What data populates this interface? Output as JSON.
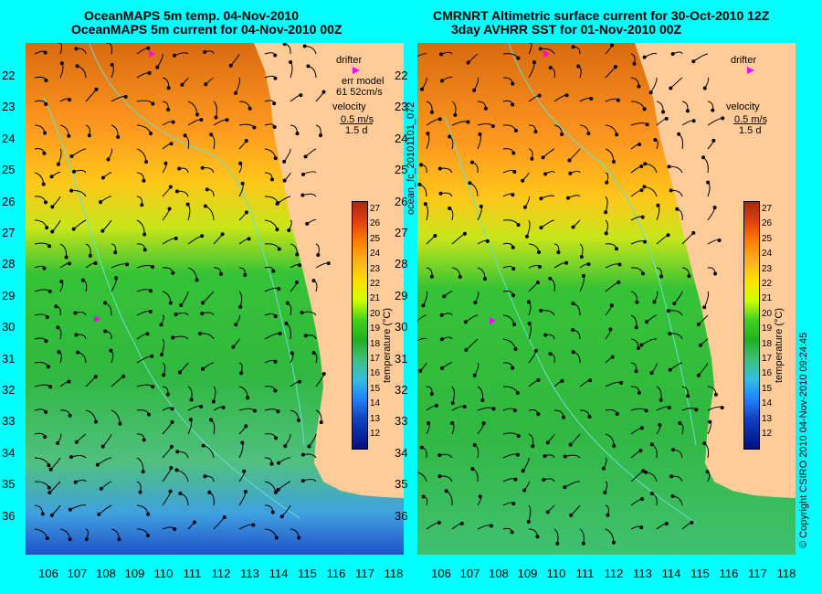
{
  "left_panel": {
    "title_line1": "OceanMAPS 5m temp. 04-Nov-2010",
    "title_line2": "OceanMAPS 5m current for 04-Nov-2010 00Z",
    "legend": {
      "drifter": "drifter",
      "err_model_1": "err model",
      "err_model_2": "61 52cm/s",
      "velocity": "velocity",
      "scale_1": "0.5 m/s",
      "scale_2": "1.5 d"
    }
  },
  "right_panel": {
    "title_line1": "CMRNRT Altimetric surface current for 30-Oct-2010 12Z",
    "title_line2": "3day AVHRR SST for 01-Nov-2010 00Z",
    "legend": {
      "drifter": "drifter",
      "velocity": "velocity",
      "scale_1": "0.5 m/s",
      "scale_2": "1.5 d"
    }
  },
  "y_ticks": [
    "22",
    "23",
    "24",
    "25",
    "26",
    "27",
    "28",
    "29",
    "30",
    "31",
    "32",
    "33",
    "34",
    "35",
    "36"
  ],
  "x_ticks": [
    "106",
    "107",
    "108",
    "109",
    "110",
    "111",
    "112",
    "113",
    "114",
    "115",
    "116",
    "117",
    "118"
  ],
  "colorbar": {
    "title": "temperature (°C)",
    "labels": [
      "27",
      "26",
      "25",
      "24",
      "23",
      "22",
      "21",
      "20",
      "19",
      "18",
      "17",
      "16",
      "15",
      "14",
      "13",
      "12"
    ]
  },
  "side_text_middle": "ocean_fc_20101101_072",
  "side_text_right": "© Copyright CSIRO 2010   04-Nov-2010 09:24:45",
  "colors": {
    "background": "#00ffff",
    "land": "#ffcc99",
    "drifter": "#ff00ff"
  }
}
